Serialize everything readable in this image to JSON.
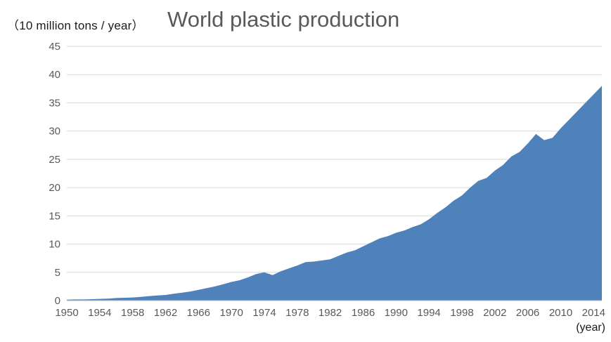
{
  "title": "World plastic production",
  "y_axis_unit": "（10 million tons / year）",
  "x_axis_unit": "(year)",
  "colors": {
    "area_fill": "#4f81bb",
    "grid_line": "#d9d9d9",
    "axis_line": "#bfbfbf",
    "tick_text": "#595959",
    "title_text": "#595959",
    "unit_text": "#1a1a1a"
  },
  "chart_data": {
    "type": "area",
    "title": "World plastic production",
    "xlabel": "(year)",
    "ylabel": "(10 million tons / year)",
    "ylim": [
      0,
      45
    ],
    "y_ticks": [
      0,
      5,
      10,
      15,
      20,
      25,
      30,
      35,
      40,
      45
    ],
    "grid": true,
    "legend": false,
    "x_tick_labels": [
      1950,
      1954,
      1958,
      1962,
      1966,
      1970,
      1974,
      1978,
      1982,
      1986,
      1990,
      1994,
      1998,
      2002,
      2006,
      2010,
      2014
    ],
    "x": [
      1950,
      1951,
      1952,
      1953,
      1954,
      1955,
      1956,
      1957,
      1958,
      1959,
      1960,
      1961,
      1962,
      1963,
      1964,
      1965,
      1966,
      1967,
      1968,
      1969,
      1970,
      1971,
      1972,
      1973,
      1974,
      1975,
      1976,
      1977,
      1978,
      1979,
      1980,
      1981,
      1982,
      1983,
      1984,
      1985,
      1986,
      1987,
      1988,
      1989,
      1990,
      1991,
      1992,
      1993,
      1994,
      1995,
      1996,
      1997,
      1998,
      1999,
      2000,
      2001,
      2002,
      2003,
      2004,
      2005,
      2006,
      2007,
      2008,
      2009,
      2010,
      2011,
      2012,
      2013,
      2014,
      2015
    ],
    "series": [
      {
        "name": "World plastic production",
        "values": [
          0.15,
          0.2,
          0.2,
          0.25,
          0.3,
          0.35,
          0.45,
          0.5,
          0.55,
          0.65,
          0.8,
          0.9,
          1.0,
          1.2,
          1.4,
          1.6,
          1.9,
          2.2,
          2.5,
          2.9,
          3.3,
          3.6,
          4.1,
          4.7,
          5.0,
          4.5,
          5.2,
          5.7,
          6.2,
          6.8,
          6.9,
          7.1,
          7.3,
          7.9,
          8.5,
          8.9,
          9.6,
          10.3,
          11.0,
          11.4,
          12.0,
          12.4,
          13.0,
          13.5,
          14.4,
          15.5,
          16.5,
          17.7,
          18.6,
          20.0,
          21.2,
          21.7,
          23.0,
          24.0,
          25.5,
          26.3,
          27.8,
          29.5,
          28.4,
          28.8,
          30.5,
          32.0,
          33.5,
          35.0,
          36.5,
          38.0
        ]
      }
    ]
  }
}
